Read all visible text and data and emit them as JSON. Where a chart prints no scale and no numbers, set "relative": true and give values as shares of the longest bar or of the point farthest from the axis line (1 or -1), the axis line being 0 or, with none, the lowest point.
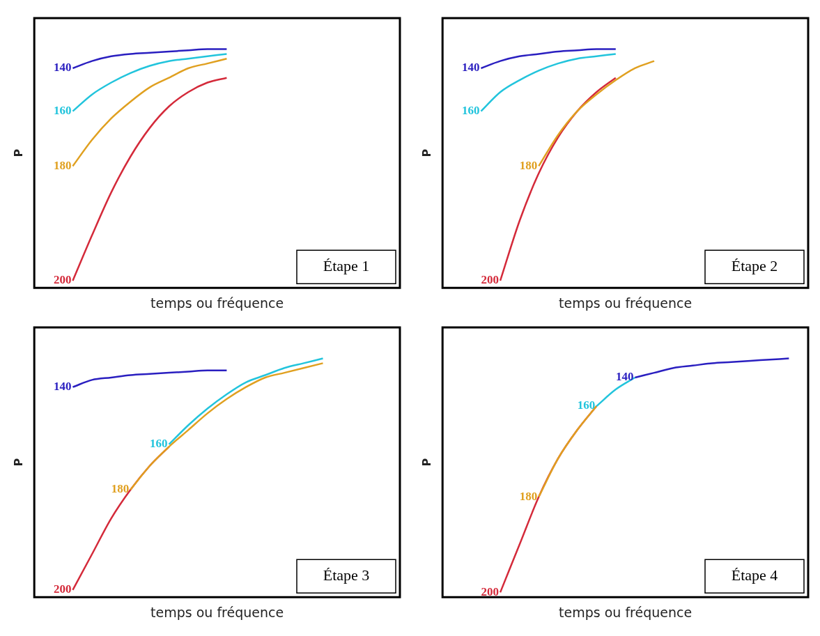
{
  "chart_data": [
    {
      "type": "line",
      "relative": true,
      "tick_labels": false,
      "marker": "none",
      "xlabel": "temps ou fréquence",
      "ylabel": "P",
      "annotations": [
        "Étape 1"
      ],
      "categories": [
        null,
        null,
        null,
        null,
        null,
        null,
        null,
        null,
        null,
        null,
        null,
        null,
        null,
        null,
        null,
        null,
        null,
        null,
        null,
        null
      ],
      "series": [
        {
          "name": "140",
          "color": "#2a1fc0",
          "values": [
            null,
            null,
            0.92,
            0.95,
            0.97,
            0.98,
            0.985,
            0.99,
            0.995,
            1.0,
            1.0,
            null,
            null,
            null,
            null,
            null,
            null,
            null,
            null,
            null
          ]
        },
        {
          "name": "160",
          "color": "#22c4dc",
          "values": [
            null,
            null,
            0.74,
            0.81,
            0.86,
            0.9,
            0.93,
            0.95,
            0.96,
            0.97,
            0.98,
            null,
            null,
            null,
            null,
            null,
            null,
            null,
            null,
            null
          ]
        },
        {
          "name": "180",
          "color": "#e0a020",
          "values": [
            null,
            null,
            0.51,
            0.62,
            0.71,
            0.78,
            0.84,
            0.88,
            0.92,
            0.94,
            0.96,
            null,
            null,
            null,
            null,
            null,
            null,
            null,
            null,
            null
          ]
        },
        {
          "name": "200",
          "color": "#d42a3a",
          "values": [
            null,
            null,
            0.03,
            0.22,
            0.4,
            0.55,
            0.67,
            0.76,
            0.82,
            0.86,
            0.88,
            null,
            null,
            null,
            null,
            null,
            null,
            null,
            null,
            null
          ]
        }
      ]
    },
    {
      "type": "line",
      "relative": true,
      "tick_labels": false,
      "marker": "none",
      "xlabel": "temps ou fréquence",
      "ylabel": "P",
      "annotations": [
        "Étape 2"
      ],
      "categories": [
        null,
        null,
        null,
        null,
        null,
        null,
        null,
        null,
        null,
        null,
        null,
        null,
        null,
        null,
        null,
        null,
        null,
        null,
        null,
        null
      ],
      "series": [
        {
          "name": "140",
          "color": "#2a1fc0",
          "values": [
            null,
            null,
            0.92,
            0.95,
            0.97,
            0.98,
            0.99,
            0.995,
            1.0,
            1.0,
            null,
            null,
            null,
            null,
            null,
            null,
            null,
            null,
            null,
            null
          ]
        },
        {
          "name": "160",
          "color": "#22c4dc",
          "values": [
            null,
            null,
            0.74,
            0.82,
            0.87,
            0.91,
            0.94,
            0.96,
            0.97,
            0.98,
            null,
            null,
            null,
            null,
            null,
            null,
            null,
            null,
            null,
            null
          ]
        },
        {
          "name": "180",
          "color": "#e0a020",
          "values": [
            null,
            null,
            null,
            null,
            null,
            0.51,
            0.64,
            0.74,
            0.81,
            0.87,
            0.92,
            0.95,
            null,
            null,
            null,
            null,
            null,
            null,
            null,
            null
          ]
        },
        {
          "name": "200",
          "color": "#d42a3a",
          "values": [
            null,
            null,
            null,
            0.03,
            0.28,
            0.48,
            0.63,
            0.74,
            0.82,
            0.88,
            null,
            null,
            null,
            null,
            null,
            null,
            null,
            null,
            null,
            null
          ]
        }
      ]
    },
    {
      "type": "line",
      "relative": true,
      "tick_labels": false,
      "marker": "none",
      "xlabel": "temps ou fréquence",
      "ylabel": "P",
      "annotations": [
        "Étape 3"
      ],
      "categories": [
        null,
        null,
        null,
        null,
        null,
        null,
        null,
        null,
        null,
        null,
        null,
        null,
        null,
        null,
        null,
        null,
        null,
        null,
        null,
        null
      ],
      "series": [
        {
          "name": "140",
          "color": "#2a1fc0",
          "values": [
            null,
            null,
            0.88,
            0.91,
            0.92,
            0.93,
            0.935,
            0.94,
            0.945,
            0.95,
            0.95,
            null,
            null,
            null,
            null,
            null,
            null,
            null,
            null,
            null
          ]
        },
        {
          "name": "160",
          "color": "#22c4dc",
          "values": [
            null,
            null,
            null,
            null,
            null,
            null,
            null,
            0.64,
            0.72,
            0.79,
            0.85,
            0.9,
            0.93,
            0.96,
            0.98,
            1.0,
            null,
            null,
            null,
            null
          ]
        },
        {
          "name": "180",
          "color": "#e0a020",
          "values": [
            null,
            null,
            null,
            null,
            null,
            0.45,
            0.55,
            0.63,
            0.7,
            0.77,
            0.83,
            0.88,
            0.92,
            0.94,
            0.96,
            0.98,
            null,
            null,
            null,
            null
          ]
        },
        {
          "name": "200",
          "color": "#d42a3a",
          "values": [
            null,
            null,
            0.03,
            0.18,
            0.33,
            0.45,
            0.55,
            0.63,
            null,
            null,
            null,
            null,
            null,
            null,
            null,
            null,
            null,
            null,
            null,
            null
          ]
        }
      ]
    },
    {
      "type": "line",
      "relative": true,
      "tick_labels": false,
      "marker": "none",
      "xlabel": "temps ou fréquence",
      "ylabel": "P",
      "annotations": [
        "Étape 4"
      ],
      "categories": [
        null,
        null,
        null,
        null,
        null,
        null,
        null,
        null,
        null,
        null,
        null,
        null,
        null,
        null,
        null,
        null,
        null,
        null,
        null,
        null
      ],
      "series": [
        {
          "name": "140",
          "color": "#2a1fc0",
          "values": [
            null,
            null,
            null,
            null,
            null,
            null,
            null,
            null,
            null,
            null,
            0.92,
            0.94,
            0.96,
            0.97,
            0.98,
            0.985,
            0.99,
            0.995,
            1.0,
            null
          ]
        },
        {
          "name": "160",
          "color": "#22c4dc",
          "values": [
            null,
            null,
            null,
            null,
            null,
            null,
            null,
            null,
            0.8,
            0.87,
            0.92,
            null,
            null,
            null,
            null,
            null,
            null,
            null,
            null,
            null
          ]
        },
        {
          "name": "180",
          "color": "#e0a020",
          "values": [
            null,
            null,
            null,
            null,
            null,
            0.42,
            0.58,
            0.7,
            0.8,
            null,
            null,
            null,
            null,
            null,
            null,
            null,
            null,
            null,
            null,
            null
          ]
        },
        {
          "name": "200",
          "color": "#d42a3a",
          "values": [
            null,
            null,
            null,
            0.02,
            0.22,
            0.42,
            0.58,
            0.7,
            0.8,
            null,
            null,
            null,
            null,
            null,
            null,
            null,
            null,
            null,
            null,
            null
          ]
        }
      ]
    }
  ]
}
